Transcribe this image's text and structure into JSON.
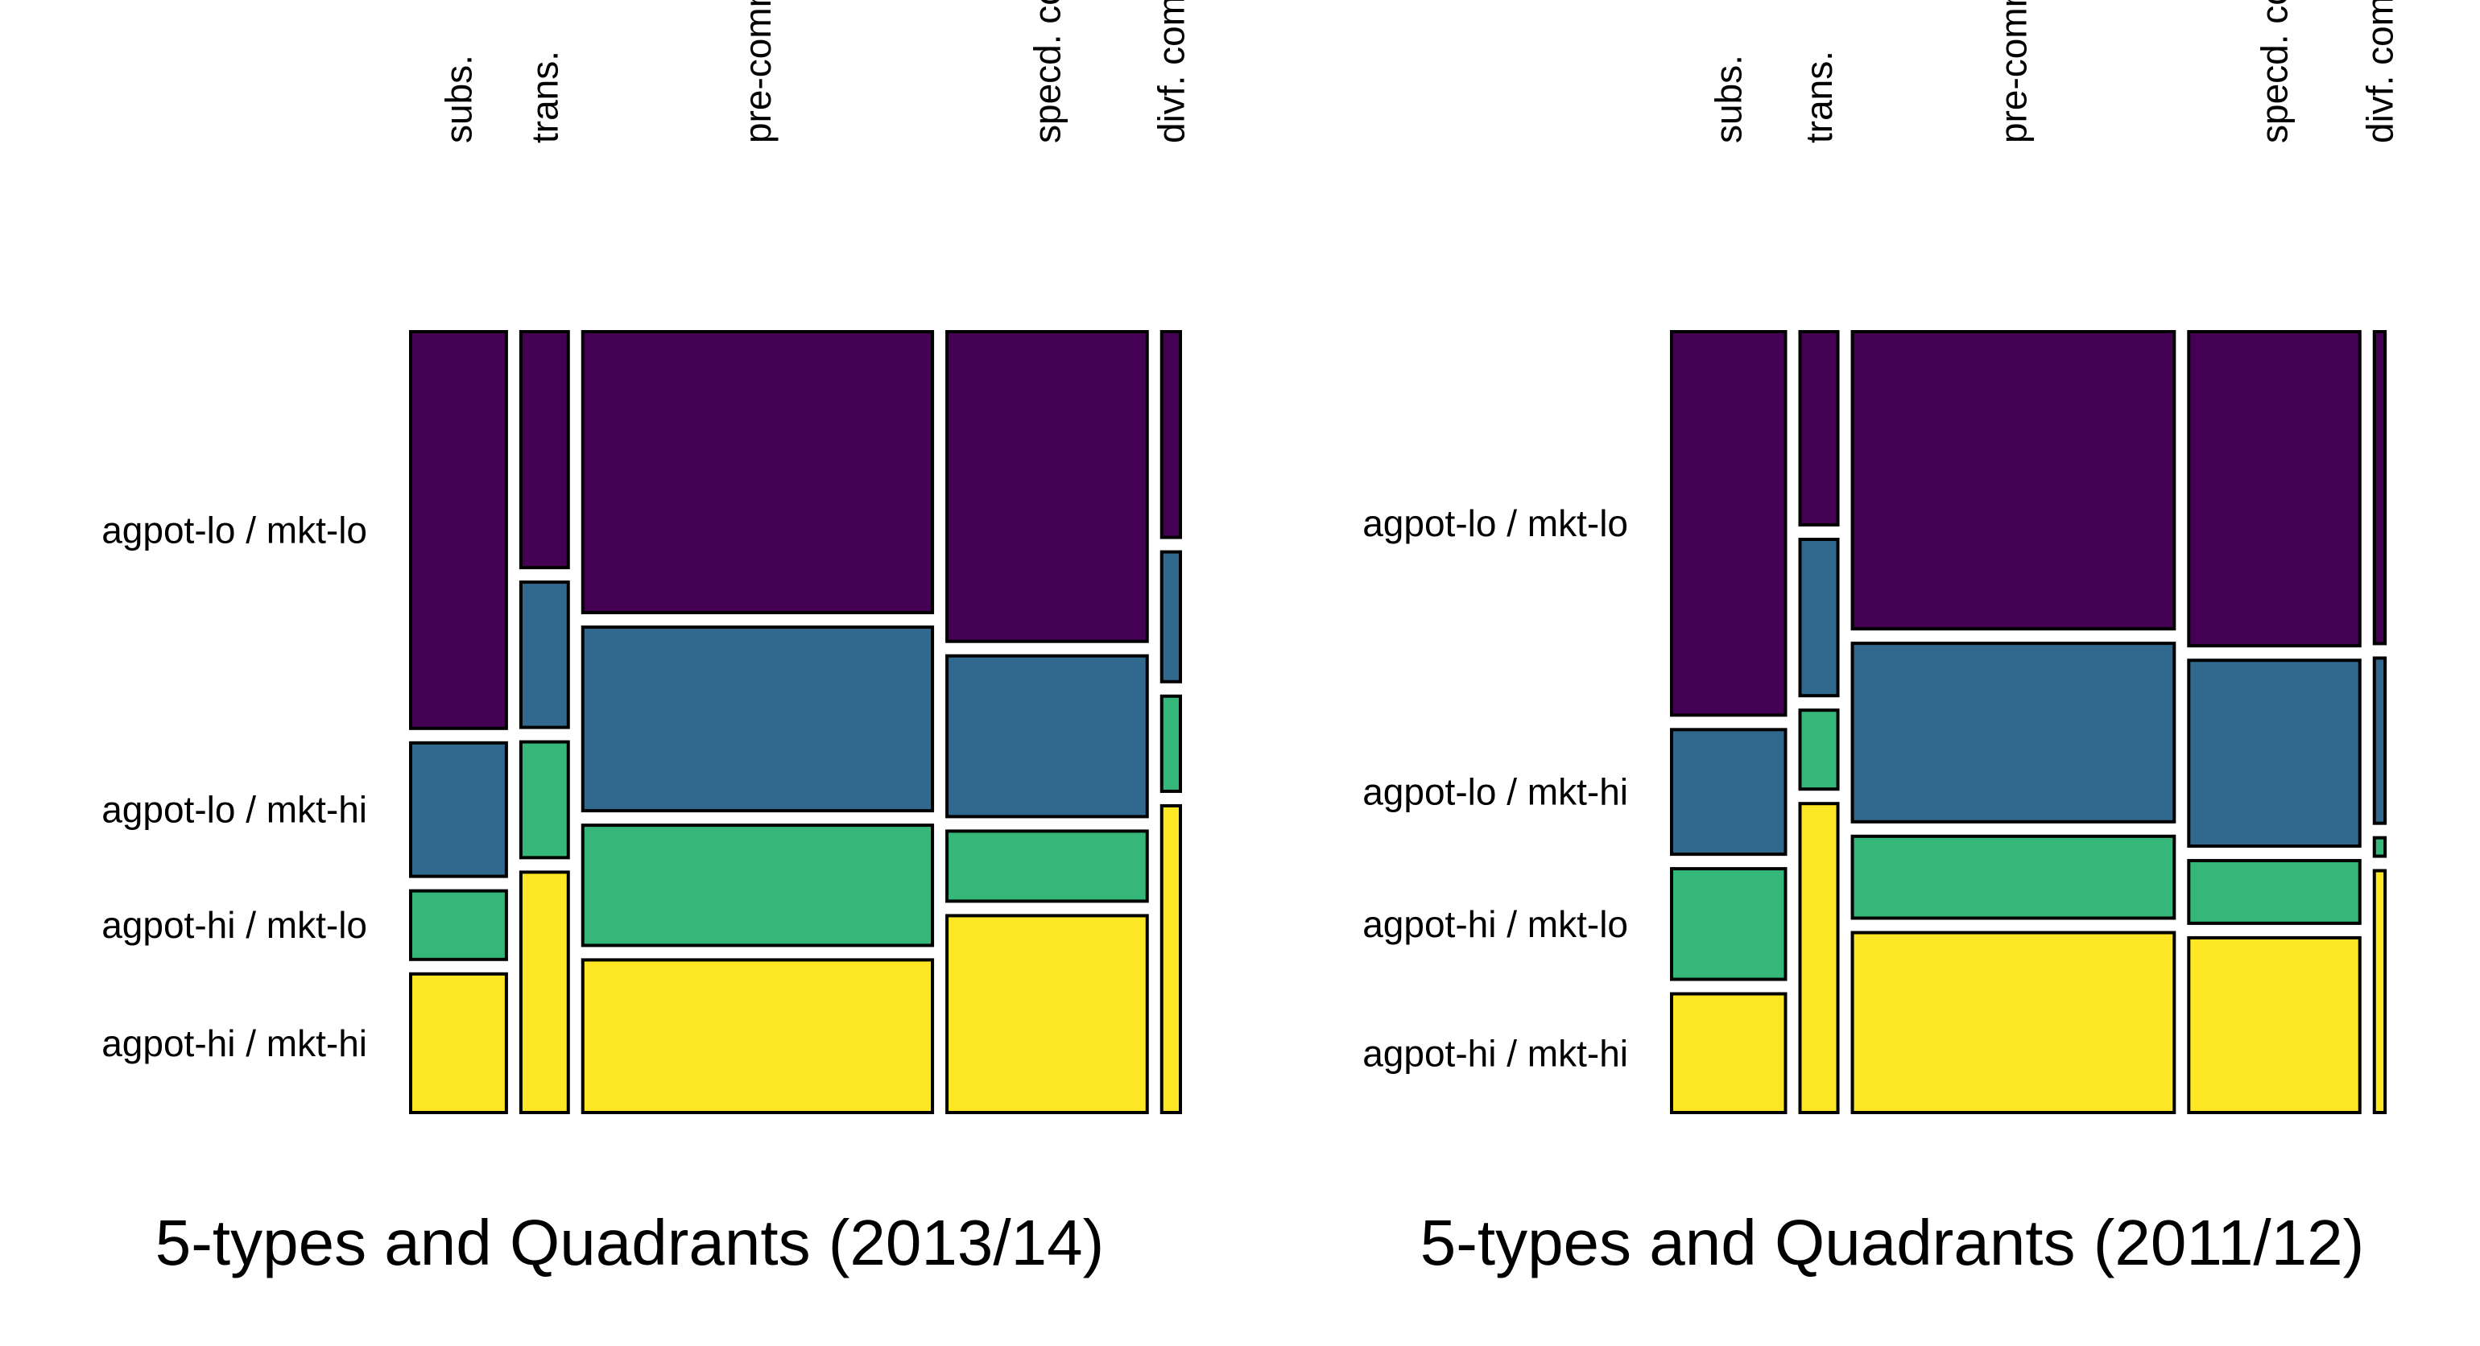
{
  "chart_data": [
    {
      "type": "mosaic",
      "title": "5-types and Quadrants (2013/14)",
      "columns": [
        {
          "label": "subs.",
          "width": 0.1345,
          "shares": [
            0.538,
            0.181,
            0.093,
            0.188
          ]
        },
        {
          "label": "trans.",
          "width": 0.0666,
          "shares": [
            0.32,
            0.197,
            0.157,
            0.326
          ]
        },
        {
          "label": "pre-comm.",
          "width": 0.4913,
          "shares": [
            0.381,
            0.249,
            0.163,
            0.207
          ]
        },
        {
          "label": "specd. comm.",
          "width": 0.2813,
          "shares": [
            0.42,
            0.218,
            0.095,
            0.267
          ]
        },
        {
          "label": "divf. comm.",
          "width": 0.0263,
          "shares": [
            0.279,
            0.176,
            0.129,
            0.416
          ]
        }
      ],
      "rows": [
        "agpot-lo / mkt-lo",
        "agpot-lo / mkt-hi",
        "agpot-hi / mkt-lo",
        "agpot-hi / mkt-hi"
      ]
    },
    {
      "type": "mosaic",
      "title": "5-types and Quadrants (2011/12)",
      "columns": [
        {
          "label": "subs.",
          "width": 0.1597,
          "shares": [
            0.52,
            0.169,
            0.15,
            0.161
          ]
        },
        {
          "label": "trans.",
          "width": 0.0531,
          "shares": [
            0.262,
            0.212,
            0.107,
            0.419
          ]
        },
        {
          "label": "pre-comm.",
          "width": 0.4512,
          "shares": [
            0.403,
            0.242,
            0.111,
            0.244
          ]
        },
        {
          "label": "specd. comm.",
          "width": 0.2398,
          "shares": [
            0.426,
            0.252,
            0.085,
            0.237
          ]
        },
        {
          "label": "divf. comm.",
          "width": 0.0151,
          "shares": [
            0.423,
            0.224,
            0.025,
            0.328
          ]
        }
      ],
      "rows": [
        "agpot-lo / mkt-lo",
        "agpot-lo / mkt-hi",
        "agpot-hi / mkt-lo",
        "agpot-hi / mkt-hi"
      ]
    }
  ],
  "colors": [
    "#440154",
    "#31688E",
    "#35B779",
    "#FDE725"
  ]
}
